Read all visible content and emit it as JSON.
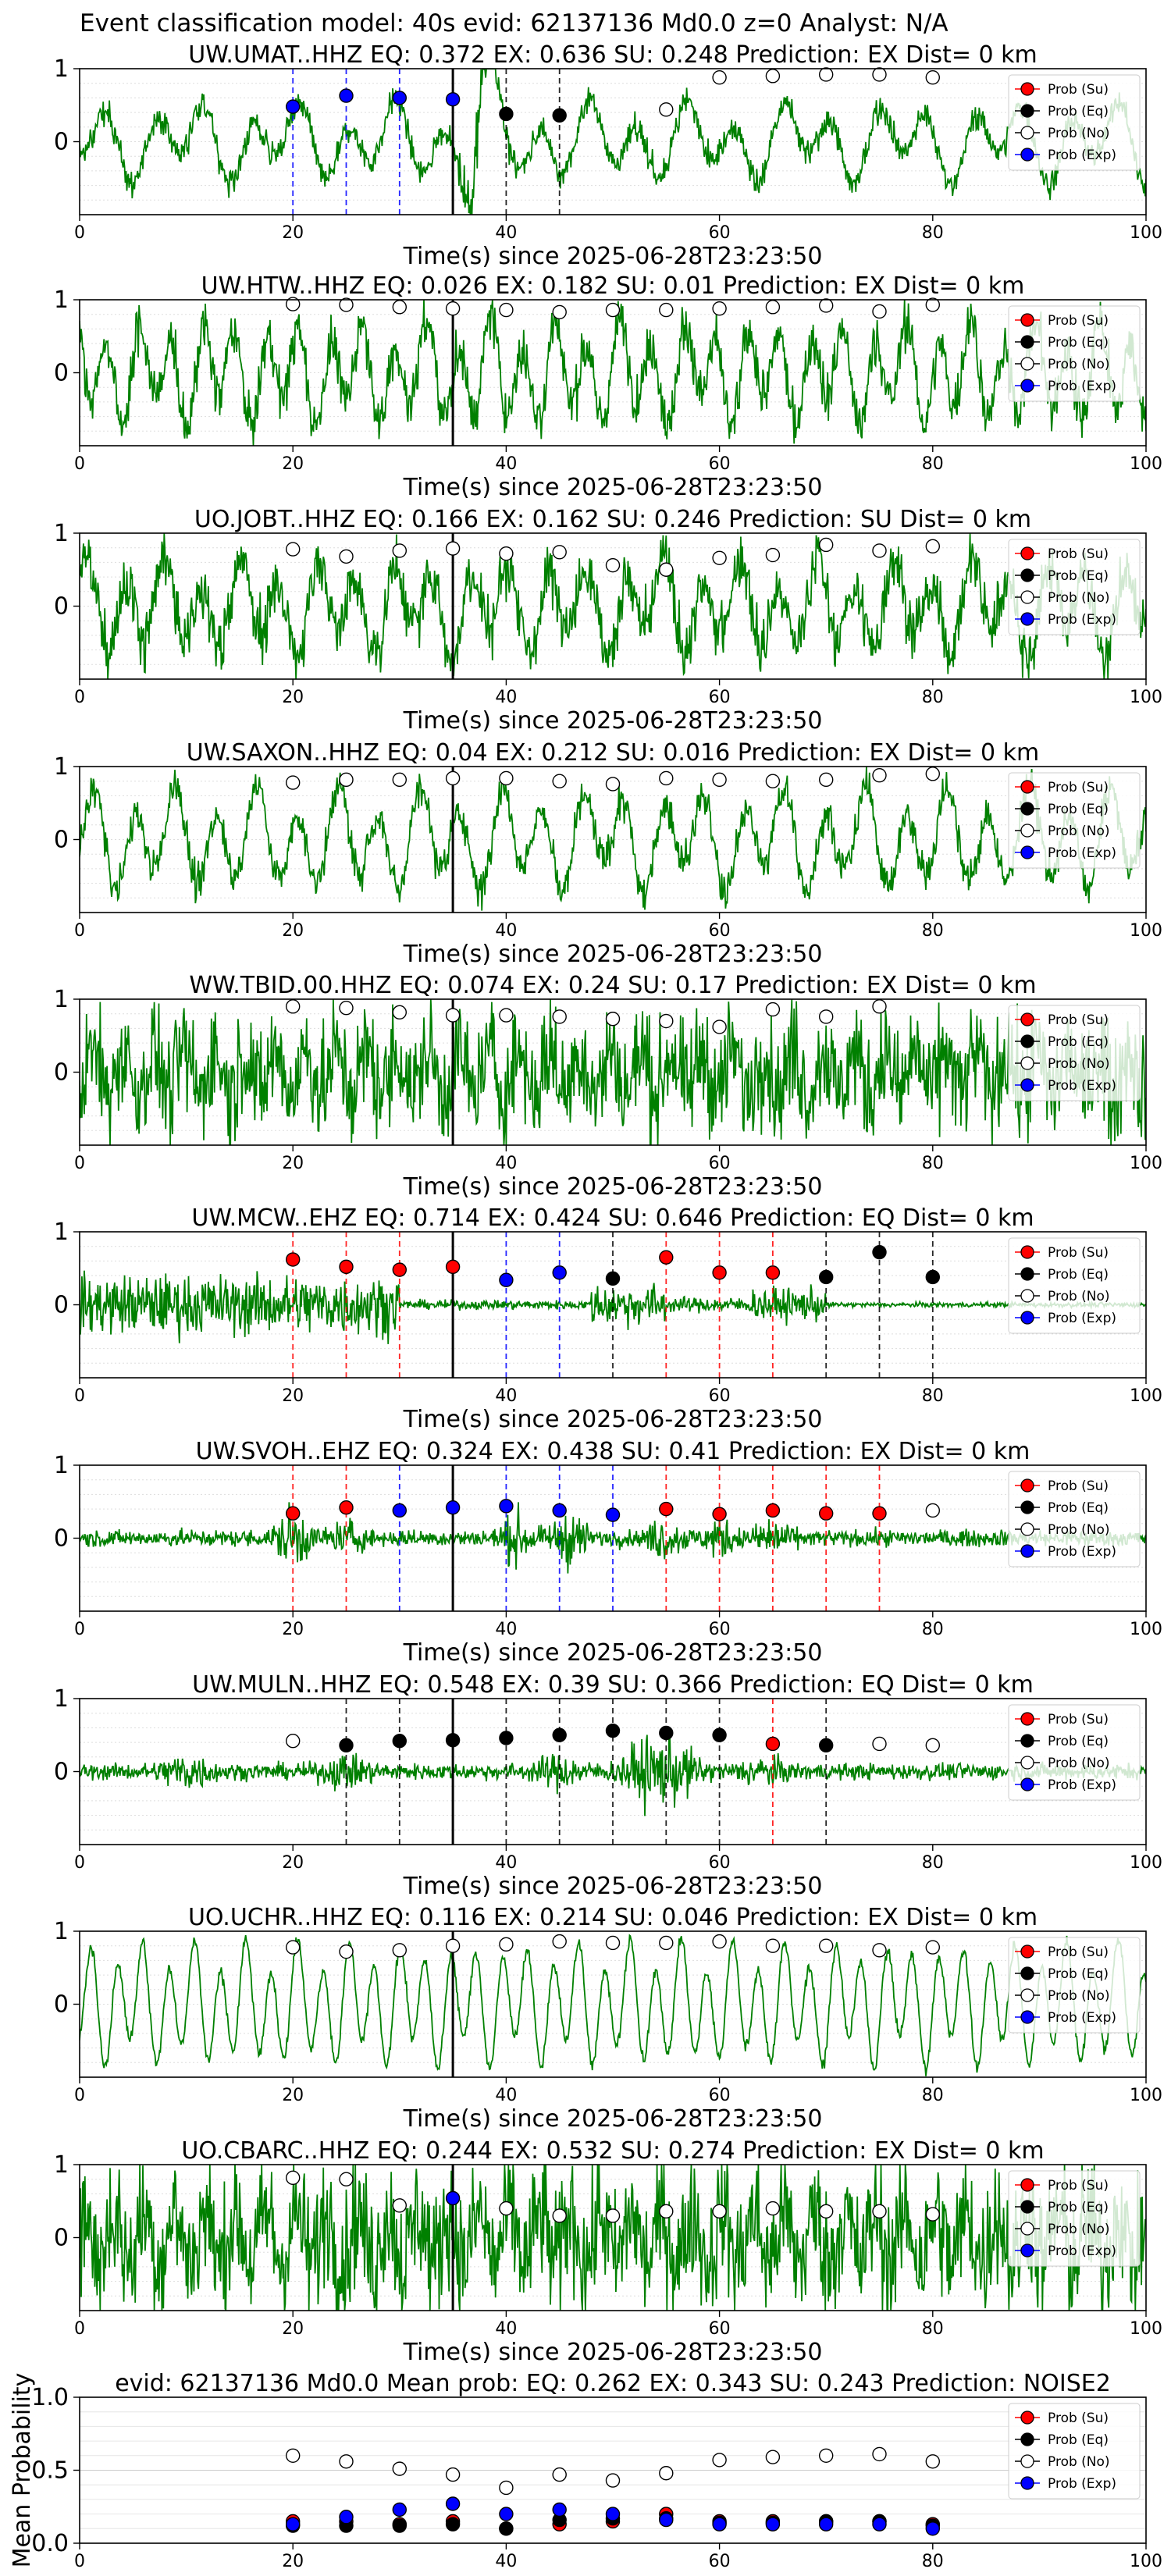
{
  "figure": {
    "suptitle": "Event classification model: 40s evid: 62137136 Md0.0 z=0 Analyst: N/A",
    "colors": {
      "waveform": "#008000",
      "su": "#ff0000",
      "eq": "#000000",
      "no": "#ffffff",
      "exp": "#0000ff",
      "event_line": "#000000"
    },
    "legend": {
      "placement": "top-right",
      "entries": [
        "Prob (Su)",
        "Prob (Eq)",
        "Prob (No)",
        "Prob (Exp)"
      ]
    }
  },
  "chart_data": [
    {
      "type": "line",
      "title": "UW.UMAT..HHZ   EQ: 0.372  EX: 0.636  SU: 0.248   Prediction: EX    Dist= 0 km",
      "xlabel": "Time(s) since 2025-06-28T23:23:50",
      "xlim": [
        0,
        100
      ],
      "ylim": [
        -1,
        1
      ],
      "xticks": [
        "0",
        "20",
        "40",
        "60",
        "80",
        "100"
      ],
      "yticks": [
        "1",
        "0"
      ],
      "event_time": 35,
      "points": [
        {
          "t": 20,
          "p": 0.48,
          "c": "exp"
        },
        {
          "t": 25,
          "p": 0.63,
          "c": "exp"
        },
        {
          "t": 30,
          "p": 0.6,
          "c": "exp"
        },
        {
          "t": 35,
          "p": 0.58,
          "c": "exp"
        },
        {
          "t": 40,
          "p": 0.38,
          "c": "eq"
        },
        {
          "t": 45,
          "p": 0.36,
          "c": "eq"
        },
        {
          "t": 55,
          "p": 0.44,
          "c": "no"
        },
        {
          "t": 60,
          "p": 0.88,
          "c": "no"
        },
        {
          "t": 65,
          "p": 0.9,
          "c": "no"
        },
        {
          "t": 70,
          "p": 0.92,
          "c": "no"
        },
        {
          "t": 75,
          "p": 0.92,
          "c": "no"
        },
        {
          "t": 80,
          "p": 0.88,
          "c": "no"
        }
      ]
    },
    {
      "type": "line",
      "title": "UW.HTW..HHZ   EQ: 0.026  EX: 0.182  SU: 0.01   Prediction: EX    Dist= 0 km",
      "xlabel": "Time(s) since 2025-06-28T23:23:50",
      "xlim": [
        0,
        100
      ],
      "ylim": [
        -1,
        1
      ],
      "xticks": [
        "0",
        "20",
        "40",
        "60",
        "80",
        "100"
      ],
      "yticks": [
        "1",
        "0"
      ],
      "event_time": 35,
      "points": [
        {
          "t": 20,
          "p": 0.94,
          "c": "no"
        },
        {
          "t": 25,
          "p": 0.93,
          "c": "no"
        },
        {
          "t": 30,
          "p": 0.9,
          "c": "no"
        },
        {
          "t": 35,
          "p": 0.88,
          "c": "no"
        },
        {
          "t": 40,
          "p": 0.86,
          "c": "no"
        },
        {
          "t": 45,
          "p": 0.83,
          "c": "no"
        },
        {
          "t": 50,
          "p": 0.86,
          "c": "no"
        },
        {
          "t": 55,
          "p": 0.86,
          "c": "no"
        },
        {
          "t": 60,
          "p": 0.88,
          "c": "no"
        },
        {
          "t": 65,
          "p": 0.9,
          "c": "no"
        },
        {
          "t": 70,
          "p": 0.92,
          "c": "no"
        },
        {
          "t": 75,
          "p": 0.84,
          "c": "no"
        },
        {
          "t": 80,
          "p": 0.93,
          "c": "no"
        }
      ]
    },
    {
      "type": "line",
      "title": "UO.JOBT..HHZ   EQ: 0.166  EX: 0.162  SU: 0.246   Prediction: SU    Dist= 0 km",
      "xlabel": "Time(s) since 2025-06-28T23:23:50",
      "xlim": [
        0,
        100
      ],
      "ylim": [
        -1,
        1
      ],
      "xticks": [
        "0",
        "20",
        "40",
        "60",
        "80",
        "100"
      ],
      "yticks": [
        "1",
        "0"
      ],
      "event_time": 35,
      "points": [
        {
          "t": 20,
          "p": 0.78,
          "c": "no"
        },
        {
          "t": 25,
          "p": 0.68,
          "c": "no"
        },
        {
          "t": 30,
          "p": 0.76,
          "c": "no"
        },
        {
          "t": 35,
          "p": 0.79,
          "c": "no"
        },
        {
          "t": 40,
          "p": 0.72,
          "c": "no"
        },
        {
          "t": 45,
          "p": 0.74,
          "c": "no"
        },
        {
          "t": 50,
          "p": 0.56,
          "c": "no"
        },
        {
          "t": 55,
          "p": 0.5,
          "c": "no"
        },
        {
          "t": 60,
          "p": 0.66,
          "c": "no"
        },
        {
          "t": 65,
          "p": 0.7,
          "c": "no"
        },
        {
          "t": 70,
          "p": 0.84,
          "c": "no"
        },
        {
          "t": 75,
          "p": 0.76,
          "c": "no"
        },
        {
          "t": 80,
          "p": 0.82,
          "c": "no"
        }
      ]
    },
    {
      "type": "line",
      "title": "UW.SAXON..HHZ   EQ: 0.04  EX: 0.212  SU: 0.016   Prediction: EX    Dist= 0 km",
      "xlabel": "Time(s) since 2025-06-28T23:23:50",
      "xlim": [
        0,
        100
      ],
      "ylim": [
        -1,
        1
      ],
      "xticks": [
        "0",
        "20",
        "40",
        "60",
        "80",
        "100"
      ],
      "yticks": [
        "1",
        "0"
      ],
      "event_time": 35,
      "points": [
        {
          "t": 20,
          "p": 0.78,
          "c": "no"
        },
        {
          "t": 25,
          "p": 0.82,
          "c": "no"
        },
        {
          "t": 30,
          "p": 0.82,
          "c": "no"
        },
        {
          "t": 35,
          "p": 0.84,
          "c": "no"
        },
        {
          "t": 40,
          "p": 0.84,
          "c": "no"
        },
        {
          "t": 45,
          "p": 0.8,
          "c": "no"
        },
        {
          "t": 50,
          "p": 0.76,
          "c": "no"
        },
        {
          "t": 55,
          "p": 0.84,
          "c": "no"
        },
        {
          "t": 60,
          "p": 0.82,
          "c": "no"
        },
        {
          "t": 65,
          "p": 0.8,
          "c": "no"
        },
        {
          "t": 70,
          "p": 0.82,
          "c": "no"
        },
        {
          "t": 75,
          "p": 0.88,
          "c": "no"
        },
        {
          "t": 80,
          "p": 0.9,
          "c": "no"
        }
      ]
    },
    {
      "type": "line",
      "title": "WW.TBID.00.HHZ   EQ: 0.074  EX: 0.24  SU: 0.17   Prediction: EX    Dist= 0 km",
      "xlabel": "Time(s) since 2025-06-28T23:23:50",
      "xlim": [
        0,
        100
      ],
      "ylim": [
        -1,
        1
      ],
      "xticks": [
        "0",
        "20",
        "40",
        "60",
        "80",
        "100"
      ],
      "yticks": [
        "1",
        "0"
      ],
      "event_time": 35,
      "points": [
        {
          "t": 20,
          "p": 0.9,
          "c": "no"
        },
        {
          "t": 25,
          "p": 0.88,
          "c": "no"
        },
        {
          "t": 30,
          "p": 0.82,
          "c": "no"
        },
        {
          "t": 35,
          "p": 0.78,
          "c": "no"
        },
        {
          "t": 40,
          "p": 0.78,
          "c": "no"
        },
        {
          "t": 45,
          "p": 0.76,
          "c": "no"
        },
        {
          "t": 50,
          "p": 0.73,
          "c": "no"
        },
        {
          "t": 55,
          "p": 0.7,
          "c": "no"
        },
        {
          "t": 60,
          "p": 0.62,
          "c": "no"
        },
        {
          "t": 65,
          "p": 0.86,
          "c": "no"
        },
        {
          "t": 70,
          "p": 0.76,
          "c": "no"
        },
        {
          "t": 75,
          "p": 0.9,
          "c": "no"
        }
      ]
    },
    {
      "type": "line",
      "title": "UW.MCW..EHZ   EQ: 0.714  EX: 0.424  SU: 0.646   Prediction: EQ    Dist= 0 km",
      "xlabel": "Time(s) since 2025-06-28T23:23:50",
      "xlim": [
        0,
        100
      ],
      "ylim": [
        -1,
        1
      ],
      "xticks": [
        "0",
        "20",
        "40",
        "60",
        "80",
        "100"
      ],
      "yticks": [
        "1",
        "0"
      ],
      "event_time": 35,
      "points": [
        {
          "t": 20,
          "p": 0.62,
          "c": "su"
        },
        {
          "t": 25,
          "p": 0.52,
          "c": "su"
        },
        {
          "t": 30,
          "p": 0.48,
          "c": "su"
        },
        {
          "t": 35,
          "p": 0.52,
          "c": "su"
        },
        {
          "t": 40,
          "p": 0.34,
          "c": "exp"
        },
        {
          "t": 45,
          "p": 0.44,
          "c": "exp"
        },
        {
          "t": 50,
          "p": 0.36,
          "c": "eq"
        },
        {
          "t": 55,
          "p": 0.65,
          "c": "su"
        },
        {
          "t": 60,
          "p": 0.44,
          "c": "su"
        },
        {
          "t": 65,
          "p": 0.44,
          "c": "su"
        },
        {
          "t": 70,
          "p": 0.38,
          "c": "eq"
        },
        {
          "t": 75,
          "p": 0.72,
          "c": "eq"
        },
        {
          "t": 80,
          "p": 0.38,
          "c": "eq"
        }
      ]
    },
    {
      "type": "line",
      "title": "UW.SVOH..EHZ   EQ: 0.324  EX: 0.438  SU: 0.41   Prediction: EX    Dist= 0 km",
      "xlabel": "Time(s) since 2025-06-28T23:23:50",
      "xlim": [
        0,
        100
      ],
      "ylim": [
        -1,
        1
      ],
      "xticks": [
        "0",
        "20",
        "40",
        "60",
        "80",
        "100"
      ],
      "yticks": [
        "1",
        "0"
      ],
      "event_time": 35,
      "points": [
        {
          "t": 20,
          "p": 0.34,
          "c": "su"
        },
        {
          "t": 25,
          "p": 0.42,
          "c": "su"
        },
        {
          "t": 30,
          "p": 0.38,
          "c": "exp"
        },
        {
          "t": 35,
          "p": 0.42,
          "c": "exp"
        },
        {
          "t": 40,
          "p": 0.44,
          "c": "exp"
        },
        {
          "t": 45,
          "p": 0.38,
          "c": "exp"
        },
        {
          "t": 50,
          "p": 0.32,
          "c": "exp"
        },
        {
          "t": 55,
          "p": 0.4,
          "c": "su"
        },
        {
          "t": 60,
          "p": 0.33,
          "c": "su"
        },
        {
          "t": 65,
          "p": 0.38,
          "c": "su"
        },
        {
          "t": 70,
          "p": 0.34,
          "c": "su"
        },
        {
          "t": 75,
          "p": 0.34,
          "c": "su"
        },
        {
          "t": 80,
          "p": 0.38,
          "c": "no"
        }
      ]
    },
    {
      "type": "line",
      "title": "UW.MULN..HHZ   EQ: 0.548  EX: 0.39  SU: 0.366   Prediction: EQ    Dist= 0 km",
      "xlabel": "Time(s) since 2025-06-28T23:23:50",
      "xlim": [
        0,
        100
      ],
      "ylim": [
        -1,
        1
      ],
      "xticks": [
        "0",
        "20",
        "40",
        "60",
        "80",
        "100"
      ],
      "yticks": [
        "1",
        "0"
      ],
      "event_time": 35,
      "points": [
        {
          "t": 20,
          "p": 0.42,
          "c": "no"
        },
        {
          "t": 25,
          "p": 0.36,
          "c": "eq"
        },
        {
          "t": 30,
          "p": 0.42,
          "c": "eq"
        },
        {
          "t": 35,
          "p": 0.43,
          "c": "eq"
        },
        {
          "t": 40,
          "p": 0.46,
          "c": "eq"
        },
        {
          "t": 45,
          "p": 0.5,
          "c": "eq"
        },
        {
          "t": 50,
          "p": 0.56,
          "c": "eq"
        },
        {
          "t": 55,
          "p": 0.53,
          "c": "eq"
        },
        {
          "t": 60,
          "p": 0.5,
          "c": "eq"
        },
        {
          "t": 65,
          "p": 0.38,
          "c": "su"
        },
        {
          "t": 70,
          "p": 0.36,
          "c": "eq"
        },
        {
          "t": 75,
          "p": 0.38,
          "c": "no"
        },
        {
          "t": 80,
          "p": 0.36,
          "c": "no"
        }
      ]
    },
    {
      "type": "line",
      "title": "UO.UCHR..HHZ   EQ: 0.116  EX: 0.214  SU: 0.046   Prediction: EX    Dist= 0 km",
      "xlabel": "Time(s) since 2025-06-28T23:23:50",
      "xlim": [
        0,
        100
      ],
      "ylim": [
        -1,
        1
      ],
      "xticks": [
        "0",
        "20",
        "40",
        "60",
        "80",
        "100"
      ],
      "yticks": [
        "1",
        "0"
      ],
      "event_time": 35,
      "points": [
        {
          "t": 20,
          "p": 0.78,
          "c": "no"
        },
        {
          "t": 25,
          "p": 0.72,
          "c": "no"
        },
        {
          "t": 30,
          "p": 0.74,
          "c": "no"
        },
        {
          "t": 35,
          "p": 0.8,
          "c": "no"
        },
        {
          "t": 40,
          "p": 0.82,
          "c": "no"
        },
        {
          "t": 45,
          "p": 0.86,
          "c": "no"
        },
        {
          "t": 50,
          "p": 0.84,
          "c": "no"
        },
        {
          "t": 55,
          "p": 0.84,
          "c": "no"
        },
        {
          "t": 60,
          "p": 0.86,
          "c": "no"
        },
        {
          "t": 65,
          "p": 0.8,
          "c": "no"
        },
        {
          "t": 70,
          "p": 0.8,
          "c": "no"
        },
        {
          "t": 75,
          "p": 0.74,
          "c": "no"
        },
        {
          "t": 80,
          "p": 0.78,
          "c": "no"
        }
      ]
    },
    {
      "type": "line",
      "title": "UO.CBARC..HHZ   EQ: 0.244  EX: 0.532  SU: 0.274   Prediction: EX    Dist= 0 km",
      "xlabel": "Time(s) since 2025-06-28T23:23:50",
      "xlim": [
        0,
        100
      ],
      "ylim": [
        -1,
        1
      ],
      "xticks": [
        "0",
        "20",
        "40",
        "60",
        "80",
        "100"
      ],
      "yticks": [
        "1",
        "0"
      ],
      "event_time": 35,
      "points": [
        {
          "t": 20,
          "p": 0.82,
          "c": "no"
        },
        {
          "t": 25,
          "p": 0.8,
          "c": "no"
        },
        {
          "t": 30,
          "p": 0.44,
          "c": "no"
        },
        {
          "t": 35,
          "p": 0.54,
          "c": "exp"
        },
        {
          "t": 40,
          "p": 0.4,
          "c": "no"
        },
        {
          "t": 45,
          "p": 0.3,
          "c": "no"
        },
        {
          "t": 50,
          "p": 0.3,
          "c": "no"
        },
        {
          "t": 55,
          "p": 0.36,
          "c": "no"
        },
        {
          "t": 60,
          "p": 0.36,
          "c": "no"
        },
        {
          "t": 65,
          "p": 0.4,
          "c": "no"
        },
        {
          "t": 70,
          "p": 0.36,
          "c": "no"
        },
        {
          "t": 75,
          "p": 0.36,
          "c": "no"
        },
        {
          "t": 80,
          "p": 0.32,
          "c": "no"
        }
      ]
    },
    {
      "type": "scatter",
      "title": "evid: 62137136  Md0.0   Mean prob:   EQ: 0.262  EX: 0.343  SU: 0.243   Prediction: NOISE2",
      "ylabel": "Mean Probability",
      "xlim": [
        0,
        100
      ],
      "ylim": [
        0,
        1
      ],
      "xticks": [
        "0",
        "20",
        "40",
        "60",
        "80",
        "100"
      ],
      "yticks": [
        "0.0",
        "0.5",
        "1.0"
      ],
      "x": [
        20,
        25,
        30,
        35,
        40,
        45,
        50,
        55,
        60,
        65,
        70,
        75,
        80
      ],
      "series": [
        {
          "name": "Prob (Su)",
          "c": "su",
          "values": [
            0.15,
            0.15,
            0.13,
            0.15,
            0.1,
            0.13,
            0.15,
            0.2,
            0.15,
            0.15,
            0.15,
            0.15,
            0.13
          ]
        },
        {
          "name": "Prob (Eq)",
          "c": "eq",
          "values": [
            0.12,
            0.12,
            0.12,
            0.13,
            0.1,
            0.16,
            0.17,
            0.17,
            0.14,
            0.14,
            0.15,
            0.15,
            0.12
          ]
        },
        {
          "name": "Prob (No)",
          "c": "no",
          "values": [
            0.6,
            0.56,
            0.51,
            0.47,
            0.38,
            0.47,
            0.43,
            0.48,
            0.57,
            0.59,
            0.6,
            0.61,
            0.56
          ]
        },
        {
          "name": "Prob (Exp)",
          "c": "exp",
          "values": [
            0.13,
            0.18,
            0.23,
            0.27,
            0.2,
            0.23,
            0.2,
            0.16,
            0.13,
            0.13,
            0.13,
            0.13,
            0.1
          ]
        }
      ]
    }
  ]
}
